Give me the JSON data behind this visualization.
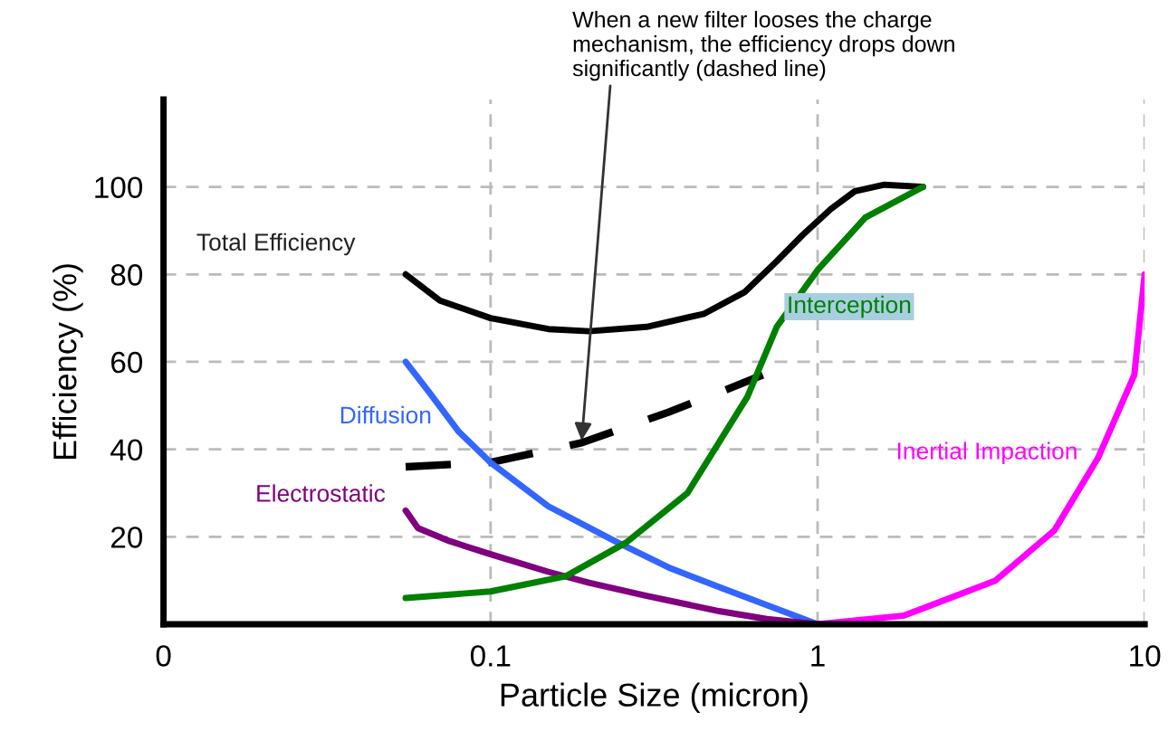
{
  "chart_data": {
    "type": "line",
    "xlabel": "Particle Size (micron)",
    "ylabel": "Efficiency (%)",
    "log": "x",
    "xlim": [
      0.01,
      10
    ],
    "xticks": [
      {
        "value": 0.01,
        "label": "0"
      },
      0.1,
      1,
      10
    ],
    "ylim": [
      0,
      120
    ],
    "yticks": [
      20,
      40,
      60,
      80,
      100
    ],
    "grid": true,
    "legend": false,
    "marker": "none",
    "annotations": [
      {
        "text": "When a new filter looses the charge\nmechanism, the efficiency drops down\nsignificantly (dashed line)",
        "x": 0.19,
        "y": 42
      }
    ],
    "series": [
      {
        "name": "Total Efficiency",
        "color": "#000000",
        "x": [
          0.055,
          0.07,
          0.1,
          0.15,
          0.2,
          0.3,
          0.45,
          0.6,
          0.75,
          0.9,
          1.1,
          1.3,
          1.6,
          2.1
        ],
        "values": [
          80,
          74,
          70,
          67.5,
          67,
          68,
          71,
          76,
          83,
          89,
          95,
          99,
          100.5,
          100
        ]
      },
      {
        "color": "#000000",
        "line_style": "dashed",
        "x": [
          0.055,
          0.1,
          0.19,
          0.35,
          0.5,
          0.68
        ],
        "values": [
          36,
          37,
          41.5,
          48.5,
          53,
          57
        ]
      },
      {
        "name": "Diffusion",
        "color": "#3366ff",
        "x": [
          0.055,
          0.065,
          0.08,
          0.1,
          0.15,
          0.24,
          0.35,
          0.52,
          0.75,
          1
        ],
        "values": [
          60,
          53,
          44,
          37,
          27,
          19,
          13,
          8,
          3.5,
          0
        ]
      },
      {
        "name": "Electrostatic",
        "color": "#800080",
        "x": [
          0.055,
          0.06,
          0.075,
          0.1,
          0.15,
          0.2,
          0.3,
          0.5,
          0.7,
          1
        ],
        "values": [
          26,
          22,
          19,
          16,
          12,
          9.5,
          6.5,
          3,
          1.2,
          0
        ]
      },
      {
        "name": "Interception",
        "color": "#008000",
        "x": [
          0.055,
          0.1,
          0.17,
          0.26,
          0.4,
          0.61,
          0.75,
          1,
          1.4,
          2.1
        ],
        "values": [
          6,
          7.5,
          11,
          18.7,
          30,
          52,
          68,
          81,
          93,
          100
        ]
      },
      {
        "name": "Inertial Impaction",
        "color": "#ff00ff",
        "x": [
          1,
          1.84,
          3.5,
          5.3,
          7.2,
          9.3,
          10
        ],
        "values": [
          0,
          2,
          10,
          21.5,
          38,
          57,
          80
        ]
      }
    ]
  }
}
